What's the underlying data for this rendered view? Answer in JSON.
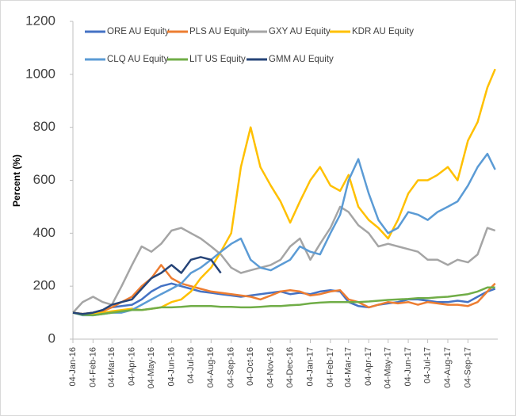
{
  "chart_data": {
    "type": "line",
    "y_label": "Percent (%)",
    "x": [
      "2016-01-04",
      "2016-01-19",
      "2016-02-04",
      "2016-02-19",
      "2016-03-04",
      "2016-03-19",
      "2016-04-04",
      "2016-04-19",
      "2016-05-04",
      "2016-05-19",
      "2016-06-04",
      "2016-06-19",
      "2016-07-04",
      "2016-07-19",
      "2016-08-04",
      "2016-08-19",
      "2016-09-04",
      "2016-09-19",
      "2016-10-04",
      "2016-10-19",
      "2016-11-04",
      "2016-11-19",
      "2016-12-04",
      "2016-12-19",
      "2017-01-04",
      "2017-01-19",
      "2017-02-04",
      "2017-02-19",
      "2017-03-04",
      "2017-03-19",
      "2017-04-04",
      "2017-04-19",
      "2017-05-04",
      "2017-05-19",
      "2017-06-04",
      "2017-06-19",
      "2017-07-04",
      "2017-07-19",
      "2017-08-04",
      "2017-08-19",
      "2017-09-04",
      "2017-09-19",
      "2017-10-04",
      "2017-10-16"
    ],
    "series": [
      {
        "name": "ORE AU Equity",
        "color": "#4472c4",
        "values": [
          100,
          95,
          100,
          110,
          120,
          125,
          130,
          150,
          180,
          200,
          210,
          200,
          190,
          180,
          175,
          170,
          165,
          160,
          165,
          170,
          175,
          180,
          170,
          175,
          170,
          180,
          185,
          180,
          140,
          125,
          120,
          130,
          135,
          140,
          150,
          150,
          145,
          140,
          140,
          145,
          140,
          160,
          180,
          190
        ]
      },
      {
        "name": "PLS AU Equity",
        "color": "#ed7d31",
        "values": [
          100,
          95,
          100,
          105,
          120,
          140,
          160,
          200,
          230,
          280,
          230,
          210,
          200,
          190,
          180,
          175,
          170,
          165,
          160,
          150,
          165,
          180,
          185,
          180,
          165,
          170,
          180,
          185,
          150,
          140,
          120,
          130,
          140,
          135,
          140,
          130,
          140,
          135,
          130,
          130,
          125,
          140,
          180,
          210
        ]
      },
      {
        "name": "GXY AU Equity",
        "color": "#a5a5a5",
        "values": [
          100,
          140,
          160,
          140,
          130,
          200,
          280,
          350,
          330,
          360,
          410,
          420,
          400,
          380,
          350,
          320,
          270,
          250,
          260,
          270,
          280,
          300,
          350,
          380,
          300,
          360,
          420,
          500,
          480,
          430,
          400,
          350,
          360,
          350,
          340,
          330,
          300,
          300,
          280,
          300,
          290,
          320,
          420,
          410
        ]
      },
      {
        "name": "KDR AU Equity",
        "color": "#ffc000",
        "values": [
          100,
          95,
          95,
          100,
          105,
          110,
          115,
          110,
          115,
          120,
          140,
          150,
          180,
          230,
          270,
          330,
          400,
          650,
          800,
          650,
          580,
          520,
          440,
          520,
          600,
          650,
          580,
          560,
          620,
          500,
          450,
          420,
          380,
          450,
          550,
          600,
          600,
          620,
          650,
          600,
          750,
          820,
          950,
          1020
        ]
      },
      {
        "name": "CLQ AU Equity",
        "color": "#5b9bd5",
        "values": [
          100,
          90,
          90,
          95,
          100,
          100,
          110,
          130,
          150,
          170,
          190,
          210,
          250,
          270,
          300,
          330,
          360,
          380,
          300,
          270,
          260,
          280,
          300,
          350,
          330,
          320,
          400,
          470,
          600,
          680,
          550,
          450,
          400,
          420,
          480,
          470,
          450,
          480,
          500,
          520,
          580,
          650,
          700,
          640
        ]
      },
      {
        "name": "LIT US Equity",
        "color": "#70ad47",
        "values": [
          100,
          92,
          90,
          95,
          100,
          105,
          110,
          110,
          115,
          120,
          120,
          122,
          125,
          125,
          125,
          122,
          122,
          120,
          120,
          122,
          125,
          125,
          128,
          130,
          135,
          138,
          140,
          140,
          140,
          140,
          142,
          145,
          148,
          150,
          152,
          155,
          155,
          158,
          160,
          165,
          170,
          180,
          195,
          195
        ]
      },
      {
        "name": "GMM AU Equity",
        "color": "#264478",
        "values": [
          100,
          95,
          100,
          110,
          130,
          140,
          150,
          190,
          230,
          250,
          280,
          250,
          300,
          310,
          300,
          250,
          null,
          null,
          null,
          null,
          null,
          null,
          null,
          null,
          null,
          null,
          null,
          null,
          null,
          null,
          null,
          null,
          null,
          null,
          null,
          null,
          null,
          null,
          null,
          null,
          null,
          null,
          null,
          null
        ]
      }
    ],
    "xlim": [
      "2016-01-04",
      "2017-10-20"
    ],
    "xticks": [
      {
        "value": "2016-01-04",
        "label": "04-Jan-16"
      },
      {
        "value": "2016-02-04",
        "label": "04-Feb-16"
      },
      {
        "value": "2016-03-04",
        "label": "04-Mar-16"
      },
      {
        "value": "2016-04-04",
        "label": "04-Apr-16"
      },
      {
        "value": "2016-05-04",
        "label": "04-May-16"
      },
      {
        "value": "2016-06-04",
        "label": "04-Jun-16"
      },
      {
        "value": "2016-07-04",
        "label": "04-Jul-16"
      },
      {
        "value": "2016-08-04",
        "label": "04-Aug-16"
      },
      {
        "value": "2016-09-04",
        "label": "04-Sep-16"
      },
      {
        "value": "2016-10-04",
        "label": "04-Oct-16"
      },
      {
        "value": "2016-11-04",
        "label": "04-Nov-16"
      },
      {
        "value": "2016-12-04",
        "label": "04-Dec-16"
      },
      {
        "value": "2017-01-04",
        "label": "04-Jan-17"
      },
      {
        "value": "2017-02-04",
        "label": "04-Feb-17"
      },
      {
        "value": "2017-03-04",
        "label": "04-Mar-17"
      },
      {
        "value": "2017-04-04",
        "label": "04-Apr-17"
      },
      {
        "value": "2017-05-04",
        "label": "04-May-17"
      },
      {
        "value": "2017-06-04",
        "label": "04-Jun-17"
      },
      {
        "value": "2017-07-04",
        "label": "04-Jul-17"
      },
      {
        "value": "2017-08-04",
        "label": "04-Aug-17"
      },
      {
        "value": "2017-09-04",
        "label": "04-Sep-17"
      }
    ],
    "ylim": [
      0,
      1200
    ],
    "yticks": [
      0,
      200,
      400,
      600,
      800,
      1000,
      1200
    ],
    "grid": false,
    "legend": "top"
  }
}
